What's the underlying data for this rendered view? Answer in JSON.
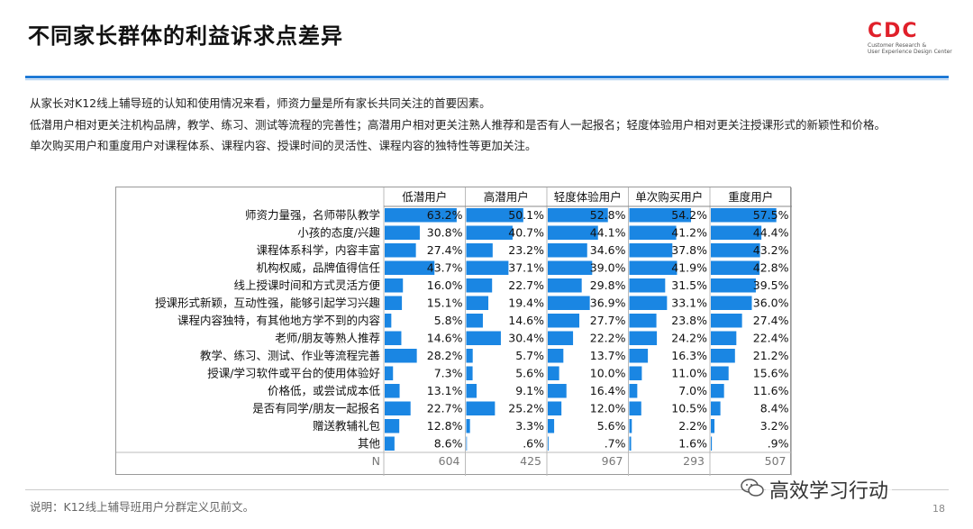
{
  "title": "不同家长群体的利益诉求点差异",
  "logo": {
    "text": "CDC",
    "sub1": "Customer Research &",
    "sub2": "User Experience Design Center"
  },
  "intro": [
    "从家长对K12线上辅导班的认知和使用情况来看，师资力量是所有家长共同关注的首要因素。",
    "低潜用户相对更关注机构品牌，教学、练习、测试等流程的完善性；高潜用户相对更关注熟人推荐和是否有人一起报名；轻度体验用户相对更关注授课形式的新颖性和价格。",
    "单次购买用户和重度用户对课程体系、课程内容、授课时间的灵活性、课程内容的独特性等更加关注。"
  ],
  "footnote": "说明：K12线上辅导班用户分群定义见前文。",
  "page_number": "18",
  "watermark": "高效学习行动",
  "colors": {
    "bar": "#1a86e3",
    "accent_line": "#1f7ad6",
    "logo_red": "#e0202a"
  },
  "chart_data": {
    "type": "table",
    "columns": [
      "低潜用户",
      "高潜用户",
      "轻度体验用户",
      "单次购买用户",
      "重度用户"
    ],
    "rows": [
      {
        "label": "师资力量强，名师带队教学",
        "values": [
          "63.2%",
          "50.1%",
          "52.8%",
          "54.2%",
          "57.5%"
        ],
        "num": [
          63.2,
          50.1,
          52.8,
          54.2,
          57.5
        ]
      },
      {
        "label": "小孩的态度/兴趣",
        "values": [
          "30.8%",
          "40.7%",
          "44.1%",
          "41.2%",
          "44.4%"
        ],
        "num": [
          30.8,
          40.7,
          44.1,
          41.2,
          44.4
        ]
      },
      {
        "label": "课程体系科学，内容丰富",
        "values": [
          "27.4%",
          "23.2%",
          "34.6%",
          "37.8%",
          "43.2%"
        ],
        "num": [
          27.4,
          23.2,
          34.6,
          37.8,
          43.2
        ]
      },
      {
        "label": "机构权威，品牌值得信任",
        "values": [
          "43.7%",
          "37.1%",
          "39.0%",
          "41.9%",
          "42.8%"
        ],
        "num": [
          43.7,
          37.1,
          39.0,
          41.9,
          42.8
        ]
      },
      {
        "label": "线上授课时间和方式灵活方便",
        "values": [
          "16.0%",
          "22.7%",
          "29.8%",
          "31.5%",
          "39.5%"
        ],
        "num": [
          16.0,
          22.7,
          29.8,
          31.5,
          39.5
        ]
      },
      {
        "label": "授课形式新颖，互动性强，能够引起学习兴趣",
        "values": [
          "15.1%",
          "19.4%",
          "36.9%",
          "33.1%",
          "36.0%"
        ],
        "num": [
          15.1,
          19.4,
          36.9,
          33.1,
          36.0
        ]
      },
      {
        "label": "课程内容独特，有其他地方学不到的内容",
        "values": [
          "5.8%",
          "14.6%",
          "27.7%",
          "23.8%",
          "27.4%"
        ],
        "num": [
          5.8,
          14.6,
          27.7,
          23.8,
          27.4
        ]
      },
      {
        "label": "老师/朋友等熟人推荐",
        "values": [
          "14.6%",
          "30.4%",
          "22.2%",
          "24.2%",
          "22.4%"
        ],
        "num": [
          14.6,
          30.4,
          22.2,
          24.2,
          22.4
        ]
      },
      {
        "label": "教学、练习、测试、作业等流程完善",
        "values": [
          "28.2%",
          "5.7%",
          "13.7%",
          "16.3%",
          "21.2%"
        ],
        "num": [
          28.2,
          5.7,
          13.7,
          16.3,
          21.2
        ]
      },
      {
        "label": "授课/学习软件或平台的使用体验好",
        "values": [
          "7.3%",
          "5.6%",
          "10.0%",
          "11.0%",
          "15.6%"
        ],
        "num": [
          7.3,
          5.6,
          10.0,
          11.0,
          15.6
        ]
      },
      {
        "label": "价格低，或尝试成本低",
        "values": [
          "13.1%",
          "9.1%",
          "16.4%",
          "7.0%",
          "11.6%"
        ],
        "num": [
          13.1,
          9.1,
          16.4,
          7.0,
          11.6
        ]
      },
      {
        "label": "是否有同学/朋友一起报名",
        "values": [
          "22.7%",
          "25.2%",
          "12.0%",
          "10.5%",
          "8.4%"
        ],
        "num": [
          22.7,
          25.2,
          12.0,
          10.5,
          8.4
        ]
      },
      {
        "label": "赠送教辅礼包",
        "values": [
          "12.8%",
          "3.3%",
          "5.6%",
          "2.2%",
          "3.2%"
        ],
        "num": [
          12.8,
          3.3,
          5.6,
          2.2,
          3.2
        ]
      },
      {
        "label": "其他",
        "values": [
          "8.6%",
          ".6%",
          ".7%",
          "1.6%",
          ".9%"
        ],
        "num": [
          8.6,
          0.6,
          0.7,
          1.6,
          0.9
        ]
      }
    ],
    "n_row": {
      "label": "N",
      "values": [
        "604",
        "425",
        "967",
        "293",
        "507"
      ]
    },
    "value_max": 70
  }
}
